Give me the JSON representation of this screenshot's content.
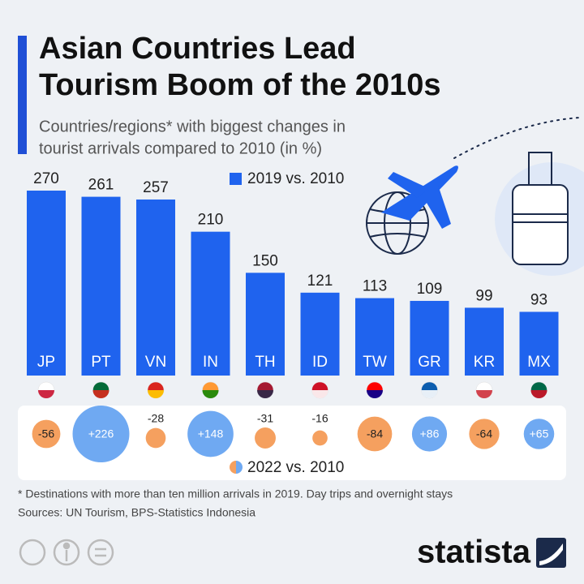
{
  "chart_data": {
    "type": "bar",
    "title": [
      "Asian Countries Lead",
      "Tourism Boom of the 2010s"
    ],
    "subtitle": [
      "Countries/regions* with biggest changes in",
      "tourist arrivals compared to 2010 (in %)"
    ],
    "categories": [
      "JP",
      "PT",
      "VN",
      "IN",
      "TH",
      "ID",
      "TW",
      "GR",
      "KR",
      "MX"
    ],
    "series": [
      {
        "name": "2019 vs. 2010",
        "color": "#1f63ee",
        "values": [
          270,
          261,
          257,
          210,
          150,
          121,
          113,
          109,
          99,
          93
        ]
      },
      {
        "name": "2022 vs. 2010",
        "type": "bubble",
        "color": "#6fa9f2",
        "negative_color": "#f5a05f",
        "values": [
          -56,
          226,
          -28,
          148,
          -31,
          -16,
          -84,
          86,
          -64,
          65
        ],
        "value_labels": [
          "-56",
          "+226",
          "-28",
          "+148",
          "-31",
          "-16",
          "-84",
          "+86",
          "-64",
          "+65"
        ]
      }
    ],
    "footnote": "* Destinations with more than ten million arrivals in 2019. Day trips and overnight stays",
    "source": "Sources: UN Tourism, BPS-Statistics Indonesia",
    "brand": "statista"
  }
}
